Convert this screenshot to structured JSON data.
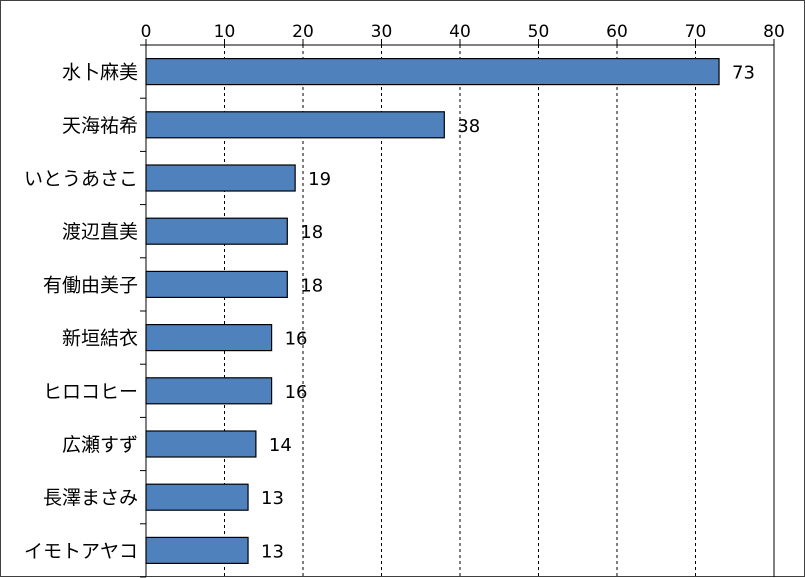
{
  "chart_data": {
    "type": "bar",
    "orientation": "horizontal",
    "title": "",
    "xlabel": "",
    "ylabel": "",
    "categories": [
      "水卜麻美",
      "天海祐希",
      "いとうあさこ",
      "渡辺直美",
      "有働由美子",
      "新垣結衣",
      "ヒロコヒー",
      "広瀬すず",
      "長澤まさみ",
      "イモトアヤコ"
    ],
    "values": [
      73,
      38,
      19,
      18,
      18,
      16,
      16,
      14,
      13,
      13
    ],
    "xlim": [
      0,
      80
    ],
    "ticks": [
      0,
      10,
      20,
      30,
      40,
      50,
      60,
      70,
      80
    ],
    "tick_labels": [
      "0",
      "10",
      "20",
      "30",
      "40",
      "50",
      "60",
      "70",
      "80"
    ],
    "axis_position": "top",
    "grid": "vertical dashed",
    "legend": "none",
    "data_labels": [
      "73",
      "38",
      "19",
      "18",
      "18",
      "16",
      "16",
      "14",
      "13",
      "13"
    ],
    "bar_color": "#4f81bd",
    "bar_edge_color": "#000000"
  }
}
